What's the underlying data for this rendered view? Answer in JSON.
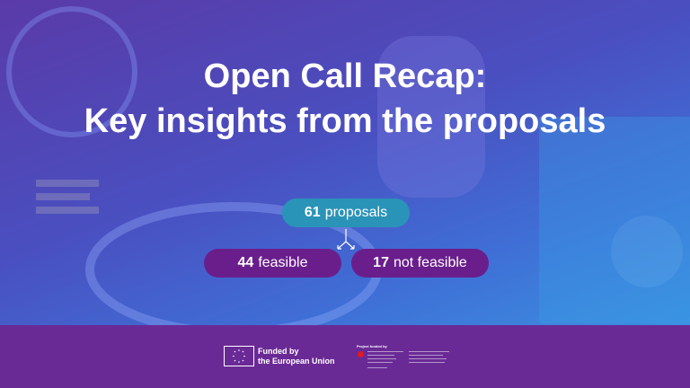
{
  "title": {
    "line1": "Open Call Recap:",
    "line2": "Key insights from the proposals"
  },
  "stats": {
    "total": {
      "value": "61",
      "label": "proposals"
    },
    "feasible": {
      "value": "44",
      "label": "feasible"
    },
    "not_feasible": {
      "value": "17",
      "label": "not feasible"
    }
  },
  "footer": {
    "eu_line1": "Funded by",
    "eu_line2": "the European Union",
    "project_funded_by": "Project funded by"
  },
  "colors": {
    "total_pill": "#2a93b8",
    "split_pills": "#6a1e8c",
    "footer": "#6a2a96"
  }
}
